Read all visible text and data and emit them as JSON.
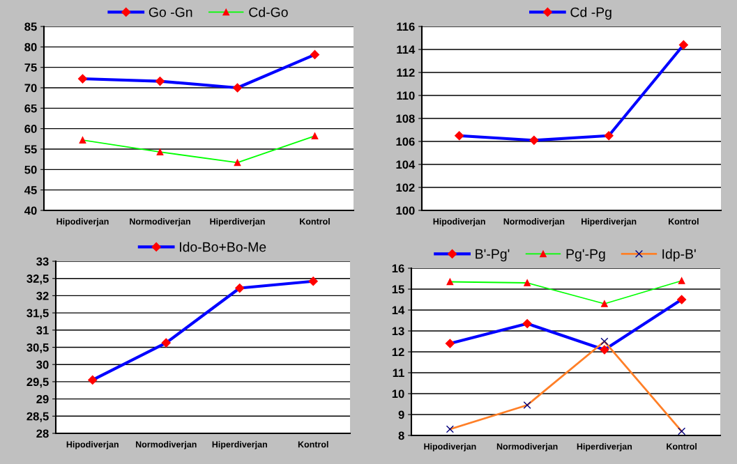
{
  "chart_data": [
    {
      "type": "line",
      "categories": [
        "Hipodiverjan",
        "Normodiverjan",
        "Hiperdiverjan",
        "Kontrol"
      ],
      "ylim": [
        40,
        85
      ],
      "yticks": [
        40,
        45,
        50,
        55,
        60,
        65,
        70,
        75,
        80,
        85
      ],
      "grid": "y",
      "legend": "top",
      "series": [
        {
          "name": "Go -Gn",
          "color": "#0000ff",
          "marker": "diamond",
          "values": [
            72.2,
            71.6,
            70.0,
            78.1
          ]
        },
        {
          "name": "Cd-Go",
          "color": "#00ff00",
          "marker": "triangle",
          "values": [
            57.2,
            54.3,
            51.7,
            58.2
          ]
        }
      ]
    },
    {
      "type": "line",
      "categories": [
        "Hipodiverjan",
        "Normodiverjan",
        "Hiperdiverjan",
        "Kontrol"
      ],
      "ylim": [
        100,
        116
      ],
      "yticks": [
        100,
        102,
        104,
        106,
        108,
        110,
        112,
        114,
        116
      ],
      "grid": "y",
      "legend": "top",
      "series": [
        {
          "name": "Cd -Pg",
          "color": "#0000ff",
          "marker": "diamond",
          "values": [
            106.5,
            106.1,
            106.5,
            114.4
          ]
        }
      ]
    },
    {
      "type": "line",
      "categories": [
        "Hipodiverjan",
        "Normodiverjan",
        "Hiperdiverjan",
        "Kontrol"
      ],
      "ylim": [
        28,
        33
      ],
      "yticks": [
        28,
        {
          "value": 28.5,
          "label": "28,5"
        },
        29,
        {
          "value": 29.5,
          "label": "29,5"
        },
        30,
        {
          "value": 30.5,
          "label": "30,5"
        },
        31,
        {
          "value": 31.5,
          "label": "31,5"
        },
        32,
        {
          "value": 32.5,
          "label": "32,5"
        },
        33
      ],
      "grid": "y",
      "legend": "top",
      "series": [
        {
          "name": "Ido-Bo+Bo-Me",
          "color": "#0000ff",
          "marker": "diamond",
          "values": [
            29.55,
            30.63,
            32.22,
            32.42
          ]
        }
      ]
    },
    {
      "type": "line",
      "categories": [
        "Hipodiverjan",
        "Normodiverjan",
        "Hiperdiverjan",
        "Kontrol"
      ],
      "ylim": [
        8,
        16
      ],
      "yticks": [
        8,
        9,
        10,
        11,
        12,
        13,
        14,
        15,
        16
      ],
      "grid": "y",
      "legend": "top",
      "series": [
        {
          "name": "B'-Pg'",
          "color": "#0000ff",
          "marker": "diamond",
          "values": [
            12.4,
            13.35,
            12.1,
            14.5
          ]
        },
        {
          "name": "Pg'-Pg",
          "color": "#00ff00",
          "marker": "triangle",
          "values": [
            15.35,
            15.3,
            14.3,
            15.4
          ]
        },
        {
          "name": "Idp-B'",
          "color": "#ff7f27",
          "marker": "cross",
          "values": [
            8.3,
            9.45,
            12.5,
            8.2
          ]
        }
      ]
    }
  ]
}
